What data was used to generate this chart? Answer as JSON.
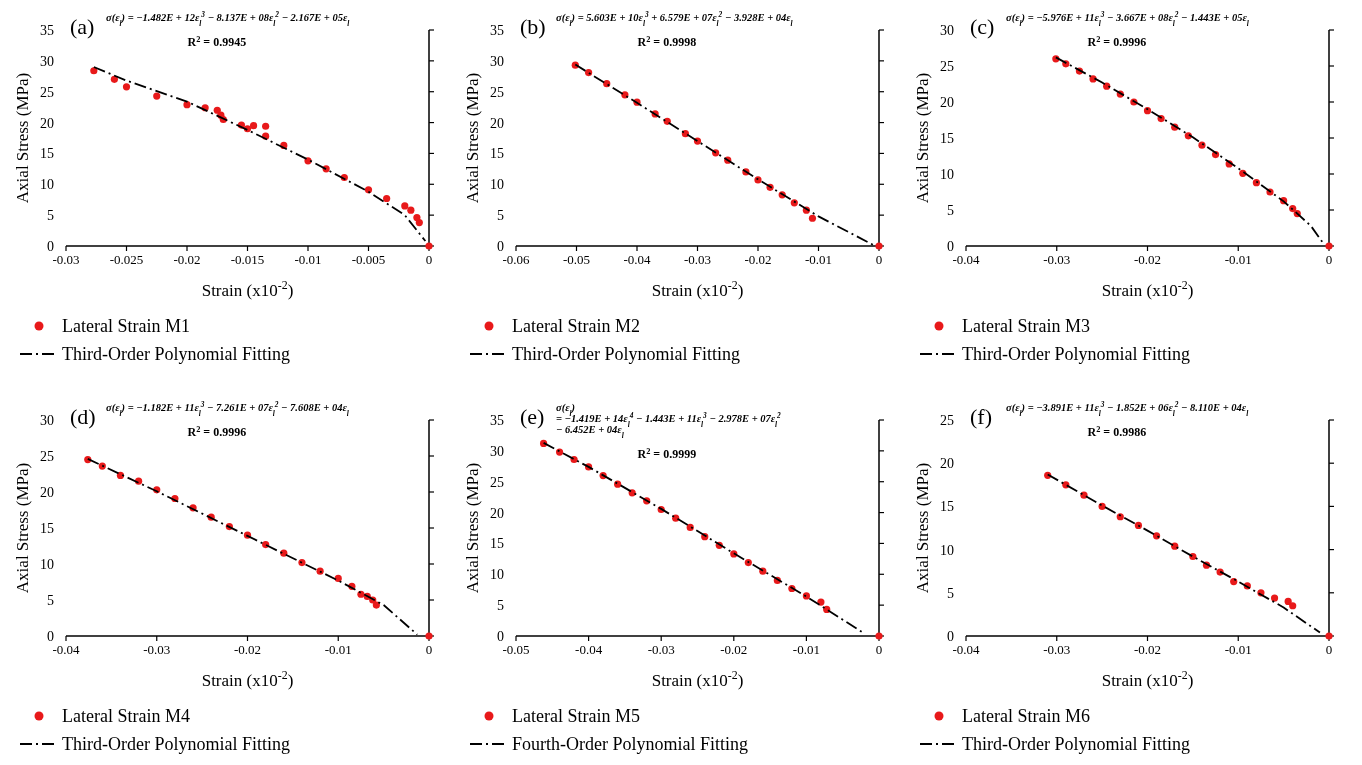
{
  "chart_data": [
    {
      "type": "scatter",
      "xlabel": "Strain (x10$^{-2}$)",
      "ylabel": "Axial Stress (MPa)",
      "xlim": [
        -0.03,
        0
      ],
      "xticks": [
        -0.03,
        -0.025,
        -0.02,
        -0.015,
        -0.01,
        -0.005,
        0
      ],
      "ylim": [
        0,
        35
      ],
      "yticks": [
        0,
        5,
        10,
        15,
        20,
        25,
        30,
        35
      ],
      "grid": false,
      "legend": "bottom",
      "annotations": [
        "(a)",
        "σ(ε$_{l}$) = −1.482E + 12ε$_{l}$$^{3}$ − 8.137E + 08ε$_{l}$$^{2}$ − 2.167E + 05ε$_{l}$",
        "R$^{2}$ = 0.9945"
      ],
      "series": [
        {
          "name": "Lateral Strain M1",
          "type": "scatter",
          "color": "#e8191a",
          "marker": "circle",
          "x": [
            -0.0277,
            -0.026,
            -0.025,
            -0.0225,
            -0.02,
            -0.0185,
            -0.0175,
            -0.0172,
            -0.017,
            -0.0155,
            -0.0145,
            -0.0135,
            -0.015,
            -0.0135,
            -0.012,
            -0.01,
            -0.0085,
            -0.007,
            -0.005,
            -0.0035,
            -0.002,
            -0.0015,
            -0.001,
            -0.0008,
            0
          ],
          "values": [
            28.4,
            27.0,
            25.8,
            24.3,
            22.9,
            22.4,
            22.0,
            21.2,
            20.5,
            19.6,
            19.5,
            19.4,
            19.0,
            17.8,
            16.3,
            13.8,
            12.5,
            11.1,
            9.1,
            7.7,
            6.5,
            5.8,
            4.6,
            3.8,
            0
          ]
        },
        {
          "name": "Third-Order Polynomial Fitting",
          "type": "line",
          "color": "#000000",
          "line_style": "dashdot",
          "marker": "none",
          "x": [
            -0.0277,
            -0.025,
            -0.02,
            -0.015,
            -0.01,
            -0.005,
            -0.002,
            -0.0003
          ],
          "values": [
            29.0,
            26.8,
            23.4,
            18.8,
            14.0,
            8.8,
            5.0,
            0.8
          ]
        }
      ]
    },
    {
      "type": "scatter",
      "xlabel": "Strain (x10$^{-2}$)",
      "ylabel": "Axial Stress (MPa)",
      "xlim": [
        -0.06,
        0
      ],
      "xticks": [
        -0.06,
        -0.05,
        -0.04,
        -0.03,
        -0.02,
        -0.01,
        0
      ],
      "ylim": [
        0,
        35
      ],
      "yticks": [
        0,
        5,
        10,
        15,
        20,
        25,
        30,
        35
      ],
      "grid": false,
      "legend": "bottom",
      "annotations": [
        "(b)",
        "σ(ε$_{l}$) = 5.603E + 10ε$_{l}$$^{3}$ + 6.579E + 07ε$_{l}$$^{2}$ − 3.928E + 04ε$_{l}$",
        "R$^{2}$ = 0.9998"
      ],
      "series": [
        {
          "name": "Lateral Strain M2",
          "type": "scatter",
          "color": "#e8191a",
          "marker": "circle",
          "x": [
            -0.0502,
            -0.048,
            -0.045,
            -0.042,
            -0.04,
            -0.037,
            -0.035,
            -0.032,
            -0.03,
            -0.027,
            -0.025,
            -0.022,
            -0.02,
            -0.018,
            -0.016,
            -0.014,
            -0.012,
            -0.011,
            0
          ],
          "values": [
            29.3,
            28.1,
            26.3,
            24.5,
            23.3,
            21.4,
            20.2,
            18.2,
            17.0,
            15.1,
            13.9,
            12.0,
            10.7,
            9.5,
            8.3,
            7.0,
            5.8,
            4.5,
            0
          ]
        },
        {
          "name": "Third-Order Polynomial Fitting",
          "type": "line",
          "color": "#000000",
          "line_style": "dashdot",
          "marker": "none",
          "x": [
            -0.0502,
            -0.04,
            -0.03,
            -0.02,
            -0.01,
            -0.001
          ],
          "values": [
            29.4,
            23.2,
            17.0,
            10.8,
            4.8,
            0.2
          ]
        }
      ]
    },
    {
      "type": "scatter",
      "xlabel": "Strain (x10$^{-2}$)",
      "ylabel": "Axial Stress (MPa)",
      "xlim": [
        -0.04,
        0
      ],
      "xticks": [
        -0.04,
        -0.03,
        -0.02,
        -0.01,
        0
      ],
      "ylim": [
        0,
        30
      ],
      "yticks": [
        0,
        5,
        10,
        15,
        20,
        25,
        30
      ],
      "grid": false,
      "legend": "bottom",
      "annotations": [
        "(c)",
        "σ(ε$_{l}$) = −5.976E + 11ε$_{l}$$^{3}$ − 3.667E + 08ε$_{l}$$^{2}$ − 1.443E + 05ε$_{l}$",
        "R$^{2}$ = 0.9996"
      ],
      "series": [
        {
          "name": "Lateral Strain M3",
          "type": "scatter",
          "color": "#e8191a",
          "marker": "circle",
          "x": [
            -0.0301,
            -0.029,
            -0.0275,
            -0.026,
            -0.0245,
            -0.023,
            -0.0215,
            -0.02,
            -0.0185,
            -0.017,
            -0.0155,
            -0.014,
            -0.0125,
            -0.011,
            -0.0095,
            -0.008,
            -0.0065,
            -0.005,
            -0.004,
            -0.0035,
            0
          ],
          "values": [
            26.0,
            25.3,
            24.3,
            23.2,
            22.2,
            21.1,
            20.0,
            18.8,
            17.7,
            16.5,
            15.3,
            14.0,
            12.7,
            11.4,
            10.1,
            8.8,
            7.5,
            6.3,
            5.2,
            4.5,
            0
          ]
        },
        {
          "name": "Third-Order Polynomial Fitting",
          "type": "line",
          "color": "#000000",
          "line_style": "dashdot",
          "marker": "none",
          "x": [
            -0.0301,
            -0.025,
            -0.02,
            -0.015,
            -0.01,
            -0.005,
            -0.002,
            -0.0007
          ],
          "values": [
            26.2,
            22.7,
            19.0,
            15.1,
            10.8,
            6.2,
            2.8,
            0.5
          ]
        }
      ]
    },
    {
      "type": "scatter",
      "xlabel": "Strain (x10$^{-2}$)",
      "ylabel": "Axial Stress (MPa)",
      "xlim": [
        -0.04,
        0
      ],
      "xticks": [
        -0.04,
        -0.03,
        -0.02,
        -0.01,
        0
      ],
      "ylim": [
        0,
        30
      ],
      "yticks": [
        0,
        5,
        10,
        15,
        20,
        25,
        30
      ],
      "grid": false,
      "legend": "bottom",
      "annotations": [
        "(d)",
        "σ(ε$_{l}$) = −1.182E + 11ε$_{l}$$^{3}$ − 7.261E + 07ε$_{l}$$^{2}$ − 7.608E + 04ε$_{l}$",
        "R$^{2}$ = 0.9996"
      ],
      "series": [
        {
          "name": "Lateral Strain M4",
          "type": "scatter",
          "color": "#e8191a",
          "marker": "circle",
          "x": [
            -0.0376,
            -0.036,
            -0.034,
            -0.032,
            -0.03,
            -0.028,
            -0.026,
            -0.024,
            -0.022,
            -0.02,
            -0.018,
            -0.016,
            -0.014,
            -0.012,
            -0.01,
            -0.0085,
            -0.0075,
            -0.0068,
            -0.0062,
            -0.0058,
            0
          ],
          "values": [
            24.5,
            23.6,
            22.3,
            21.5,
            20.3,
            19.1,
            17.8,
            16.5,
            15.2,
            14.0,
            12.7,
            11.5,
            10.2,
            9.0,
            8.0,
            6.9,
            5.8,
            5.5,
            5.0,
            4.3,
            0
          ]
        },
        {
          "name": "Third-Order Polynomial Fitting",
          "type": "line",
          "color": "#000000",
          "line_style": "dashdot",
          "marker": "none",
          "x": [
            -0.0376,
            -0.03,
            -0.02,
            -0.01,
            -0.005,
            -0.0013
          ],
          "values": [
            24.6,
            20.1,
            13.9,
            7.7,
            4.3,
            0.2
          ]
        }
      ]
    },
    {
      "type": "scatter",
      "xlabel": "Strain (x10$^{-2}$)",
      "ylabel": "Axial Stress (MPa)",
      "xlim": [
        -0.05,
        0
      ],
      "xticks": [
        -0.05,
        -0.04,
        -0.03,
        -0.02,
        -0.01,
        0
      ],
      "ylim": [
        0,
        35
      ],
      "yticks": [
        0,
        5,
        10,
        15,
        20,
        25,
        30,
        35
      ],
      "grid": false,
      "legend": "bottom",
      "annotations": [
        "(e)",
        "σ(ε$_{l}$)",
        "= −1.419E + 14ε$_{l}$$^{4}$ − 1.443E + 11ε$_{l}$$^{3}$ − 2.978E + 07ε$_{l}$$^{2}$",
        "− 6.452E + 04ε$_{l}$",
        "R$^{2}$ = 0.9999"
      ],
      "series": [
        {
          "name": "Lateral Strain M5",
          "type": "scatter",
          "color": "#e8191a",
          "marker": "circle",
          "x": [
            -0.0462,
            -0.044,
            -0.042,
            -0.04,
            -0.038,
            -0.036,
            -0.034,
            -0.032,
            -0.03,
            -0.028,
            -0.026,
            -0.024,
            -0.022,
            -0.02,
            -0.018,
            -0.016,
            -0.014,
            -0.012,
            -0.01,
            -0.008,
            -0.0072,
            0
          ],
          "values": [
            31.2,
            29.8,
            28.6,
            27.4,
            26.0,
            24.6,
            23.2,
            21.9,
            20.5,
            19.1,
            17.6,
            16.1,
            14.7,
            13.3,
            11.9,
            10.5,
            9.0,
            7.7,
            6.5,
            5.5,
            4.3,
            0
          ]
        },
        {
          "name": "Fourth-Order Polynomial Fitting",
          "type": "line",
          "color": "#000000",
          "line_style": "dashdot",
          "marker": "none",
          "x": [
            -0.0462,
            -0.04,
            -0.03,
            -0.02,
            -0.01,
            -0.002
          ],
          "values": [
            31.3,
            27.4,
            20.6,
            13.4,
            6.4,
            0.4
          ]
        }
      ]
    },
    {
      "type": "scatter",
      "xlabel": "Strain (x10$^{-2}$)",
      "ylabel": "Axial Stress (MPa)",
      "xlim": [
        -0.04,
        0
      ],
      "xticks": [
        -0.04,
        -0.03,
        -0.02,
        -0.01,
        0
      ],
      "ylim": [
        0,
        25
      ],
      "yticks": [
        0,
        5,
        10,
        15,
        20,
        25
      ],
      "grid": false,
      "legend": "bottom",
      "annotations": [
        "(f)",
        "σ(ε$_{l}$) = −3.891E + 11ε$_{l}$$^{3}$ − 1.852E + 06ε$_{l}$$^{2}$ − 8.110E + 04ε$_{l}$",
        "R$^{2}$ = 0.9986"
      ],
      "series": [
        {
          "name": "Lateral Strain M6",
          "type": "scatter",
          "color": "#e8191a",
          "marker": "circle",
          "x": [
            -0.031,
            -0.029,
            -0.027,
            -0.025,
            -0.023,
            -0.021,
            -0.019,
            -0.017,
            -0.015,
            -0.0135,
            -0.012,
            -0.0105,
            -0.009,
            -0.0075,
            -0.006,
            -0.0045,
            -0.004,
            0
          ],
          "values": [
            18.6,
            17.5,
            16.3,
            15.0,
            13.8,
            12.8,
            11.6,
            10.4,
            9.2,
            8.2,
            7.4,
            6.3,
            5.8,
            5.0,
            4.4,
            4.0,
            3.5,
            0
          ]
        },
        {
          "name": "Third-Order Polynomial Fitting",
          "type": "line",
          "color": "#000000",
          "line_style": "dashdot",
          "marker": "none",
          "x": [
            -0.031,
            -0.025,
            -0.02,
            -0.015,
            -0.01,
            -0.005,
            -0.001
          ],
          "values": [
            18.7,
            15.1,
            12.2,
            9.2,
            6.3,
            3.3,
            0.4
          ]
        }
      ]
    }
  ]
}
